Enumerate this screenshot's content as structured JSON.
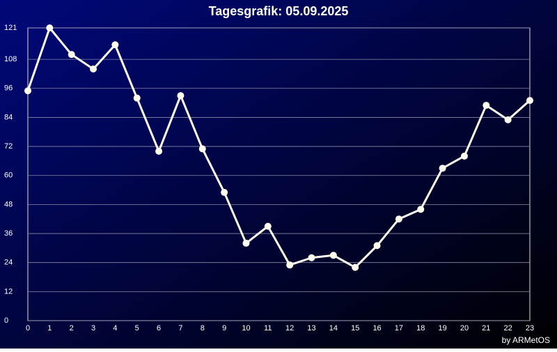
{
  "chart_data": {
    "type": "line",
    "title": "Tagesgrafik: 05.09.2025",
    "footer": "by ARMetOS",
    "x": [
      0,
      1,
      2,
      3,
      4,
      5,
      6,
      7,
      8,
      9,
      10,
      11,
      12,
      13,
      14,
      15,
      16,
      17,
      18,
      19,
      20,
      21,
      22,
      23
    ],
    "xlim": [
      0,
      23
    ],
    "series": [
      {
        "color": "#fffdf0",
        "values": [
          95,
          121,
          110,
          104,
          114,
          92,
          70,
          93,
          71,
          53,
          32,
          39,
          23,
          26,
          27,
          22,
          31,
          42,
          46,
          63,
          68,
          89,
          83,
          91
        ]
      }
    ],
    "ylim": [
      0,
      121
    ],
    "yticks": [
      0,
      12,
      24,
      36,
      48,
      60,
      72,
      84,
      96,
      108,
      121
    ],
    "grid": true
  }
}
